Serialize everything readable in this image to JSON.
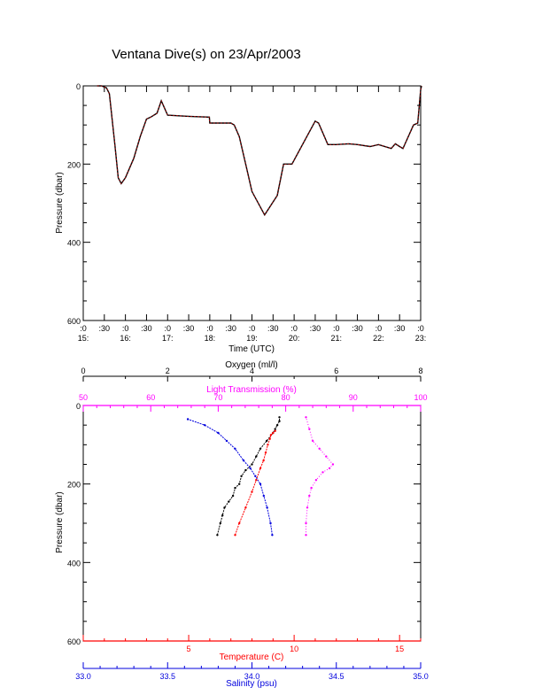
{
  "title": "Ventana Dive(s) on 23/Apr/2003",
  "colors": {
    "axis": "#000000",
    "trace_dark": "#000000",
    "trace_red": "#cc0000",
    "oxygen": "#000000",
    "temperature": "#ff0000",
    "salinity": "#0000dd",
    "light": "#ff00ff"
  },
  "chart_data": [
    {
      "type": "line",
      "xlabel": "Time (UTC)",
      "ylabel": "Pressure (dbar)",
      "ylim": [
        600,
        0
      ],
      "y_ticks": [
        0,
        200,
        400,
        600
      ],
      "x_ticks": [
        {
          "top": ":0",
          "bottom": "15:"
        },
        {
          "top": ":30",
          "bottom": ""
        },
        {
          "top": ":0",
          "bottom": "16:"
        },
        {
          "top": ":30",
          "bottom": ""
        },
        {
          "top": ":0",
          "bottom": "17:"
        },
        {
          "top": ":30",
          "bottom": ""
        },
        {
          "top": ":0",
          "bottom": "18:"
        },
        {
          "top": ":30",
          "bottom": ""
        },
        {
          "top": ":0",
          "bottom": "19:"
        },
        {
          "top": ":30",
          "bottom": ""
        },
        {
          "top": ":0",
          "bottom": "20:"
        },
        {
          "top": ":30",
          "bottom": ""
        },
        {
          "top": ":0",
          "bottom": "21:"
        },
        {
          "top": ":30",
          "bottom": ""
        },
        {
          "top": ":0",
          "bottom": "22:"
        },
        {
          "top": ":30",
          "bottom": ""
        },
        {
          "top": ":0",
          "bottom": "23:"
        }
      ],
      "series": [
        {
          "style": "dive-trace",
          "x_hours": [
            15.33,
            15.43,
            15.55,
            15.62,
            15.75,
            15.83,
            15.9,
            16.0,
            16.2,
            16.35,
            16.5,
            16.6,
            16.75,
            16.85,
            17.0,
            17.5,
            17.99,
            18.0,
            18.5,
            18.58,
            18.7,
            18.85,
            19.0,
            19.3,
            19.6,
            19.75,
            19.95,
            20.25,
            20.5,
            20.58,
            20.8,
            21.0,
            21.3,
            21.5,
            21.8,
            22.0,
            22.3,
            22.4,
            22.5,
            22.58,
            22.6,
            22.83,
            22.93,
            23.0,
            23.02
          ],
          "pressure": [
            0,
            0,
            5,
            20,
            150,
            235,
            250,
            235,
            185,
            130,
            85,
            80,
            70,
            38,
            75,
            78,
            80,
            95,
            95,
            100,
            130,
            200,
            270,
            330,
            280,
            200,
            200,
            140,
            90,
            95,
            150,
            150,
            148,
            150,
            155,
            150,
            160,
            148,
            155,
            160,
            155,
            100,
            95,
            10,
            0
          ]
        }
      ]
    },
    {
      "type": "scatter",
      "ylabel": "Pressure (dbar)",
      "ylim": [
        600,
        0
      ],
      "y_ticks": [
        0,
        200,
        400,
        600
      ],
      "axes": {
        "oxygen": {
          "label": "Oxygen (ml/l)",
          "range": [
            0,
            8
          ],
          "ticks": [
            0,
            2,
            4,
            6,
            8
          ]
        },
        "light": {
          "label": "Light Transmission (%)",
          "range": [
            50,
            100
          ],
          "ticks": [
            50,
            60,
            70,
            80,
            90,
            100
          ]
        },
        "temperature": {
          "label": "Temperature (C)",
          "range": [
            0,
            16
          ],
          "ticks": [
            5,
            10,
            15
          ]
        },
        "salinity": {
          "label": "Salinity (psu)",
          "range": [
            33.0,
            35.0
          ],
          "tick_labels": [
            "33.0",
            "33.5",
            "34.0",
            "34.5",
            "35.0"
          ],
          "ticks": [
            33.0,
            33.5,
            34.0,
            34.5,
            35.0
          ]
        }
      },
      "series": [
        {
          "variable": "oxygen",
          "x": [
            3.18,
            3.25,
            3.3,
            3.35,
            3.45,
            3.55,
            3.6,
            3.7,
            3.75,
            3.85,
            4.0,
            4.1,
            4.2,
            4.35,
            4.5,
            4.55,
            4.6,
            4.65,
            4.65
          ],
          "y": [
            330,
            300,
            280,
            260,
            245,
            230,
            210,
            200,
            180,
            165,
            150,
            130,
            110,
            90,
            70,
            60,
            50,
            40,
            30
          ]
        },
        {
          "variable": "temperature",
          "x": [
            7.2,
            7.4,
            7.7,
            8.0,
            8.2,
            8.4,
            8.55,
            8.65,
            8.75,
            8.85,
            8.9,
            9.0,
            9.1
          ],
          "y": [
            330,
            300,
            260,
            220,
            190,
            160,
            140,
            120,
            100,
            85,
            75,
            70,
            65
          ]
        },
        {
          "variable": "salinity",
          "x": [
            34.12,
            34.11,
            34.09,
            34.07,
            34.05,
            34.02,
            33.99,
            33.95,
            33.9,
            33.85,
            33.8,
            33.72,
            33.62
          ],
          "y": [
            330,
            300,
            260,
            230,
            200,
            180,
            160,
            140,
            110,
            90,
            70,
            50,
            35
          ]
        },
        {
          "variable": "light",
          "x": [
            83.0,
            83.0,
            83.2,
            83.5,
            83.8,
            84.5,
            85.5,
            86.5,
            87.0,
            86.0,
            85.0,
            84.0,
            83.5,
            83.0
          ],
          "y": [
            330,
            300,
            260,
            230,
            210,
            190,
            170,
            160,
            150,
            130,
            110,
            90,
            60,
            30
          ]
        }
      ]
    }
  ]
}
